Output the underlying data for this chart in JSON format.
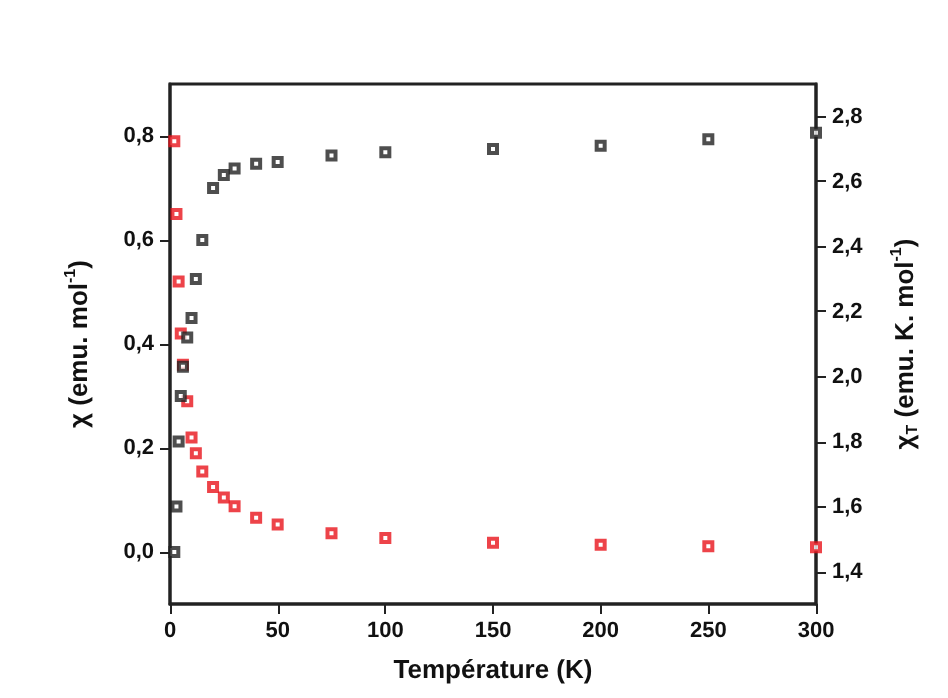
{
  "chart_data": {
    "type": "scatter",
    "xlabel": "Température (K)",
    "ylabel": "χ (emu. mol$^{-1}$)",
    "y2label": "χ$_{T}$ (emu. K. mol$^{-1}$)",
    "x": [
      2,
      3,
      4,
      5,
      6,
      8,
      10,
      12,
      15,
      20,
      25,
      30,
      40,
      50,
      75,
      100,
      150,
      200,
      250,
      300
    ],
    "series": [
      {
        "color": "#e8141c",
        "values": [
          0.79,
          0.65,
          0.52,
          0.42,
          0.36,
          0.29,
          0.22,
          0.19,
          0.155,
          0.125,
          0.105,
          0.088,
          0.066,
          0.053,
          0.036,
          0.027,
          0.018,
          0.014,
          0.011,
          0.009
        ]
      },
      {
        "color": "#222222",
        "axis": "y2",
        "values": [
          1.46,
          1.6,
          1.8,
          1.94,
          2.03,
          2.12,
          2.18,
          2.3,
          2.42,
          2.58,
          2.62,
          2.64,
          2.655,
          2.66,
          2.68,
          2.69,
          2.7,
          2.71,
          2.73,
          2.75
        ]
      }
    ],
    "xlim": [
      0,
      300
    ],
    "xticks": [
      0,
      50,
      100,
      150,
      200,
      250,
      300
    ],
    "ylim": [
      -0.1,
      0.9
    ],
    "yticks": [
      {
        "value": 0,
        "label": "0,0"
      },
      {
        "value": 0.2,
        "label": "0,2"
      },
      {
        "value": 0.4,
        "label": "0,4"
      },
      {
        "value": 0.6,
        "label": "0,6"
      },
      {
        "value": 0.8,
        "label": "0,8"
      }
    ],
    "y2lim": [
      1.3,
      2.9
    ],
    "y2ticks": [
      {
        "value": 1.4,
        "label": "1,4"
      },
      {
        "value": 1.6,
        "label": "1,6"
      },
      {
        "value": 1.8,
        "label": "1,8"
      },
      {
        "value": 2.0,
        "label": "2,0"
      },
      {
        "value": 2.2,
        "label": "2,2"
      },
      {
        "value": 2.4,
        "label": "2,4"
      },
      {
        "value": 2.6,
        "label": "2,6"
      },
      {
        "value": 2.8,
        "label": "2,8"
      }
    ],
    "grid": false,
    "marker": "square"
  }
}
